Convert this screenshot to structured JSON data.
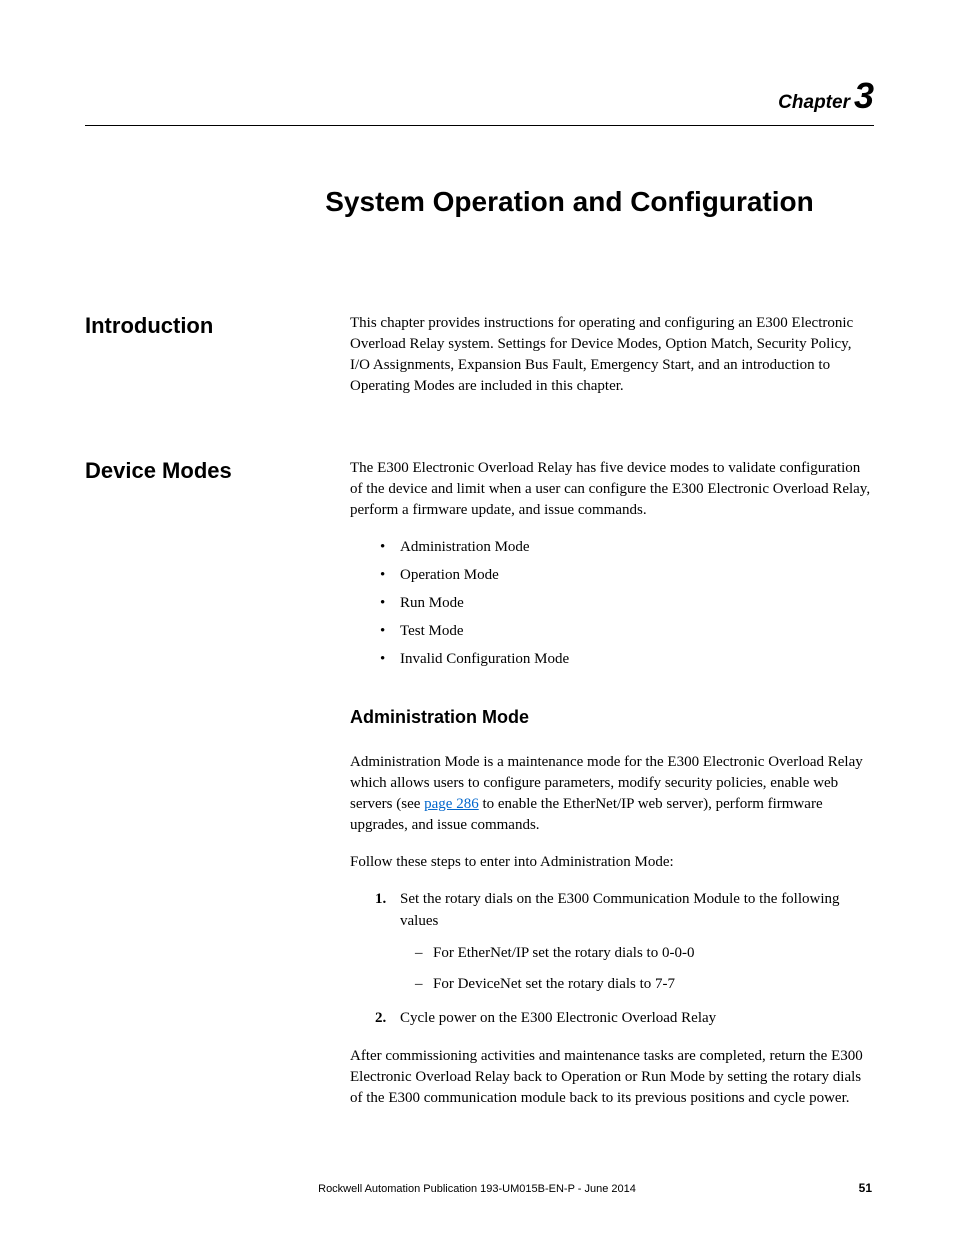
{
  "chapter": {
    "label": "Chapter",
    "number": "3"
  },
  "title": "System Operation and Configuration",
  "sections": {
    "introduction": {
      "heading": "Introduction",
      "body": "This chapter provides instructions for operating and configuring an E300 Electronic Overload Relay system. Settings for Device Modes, Option Match, Security Policy, I/O Assignments, Expansion Bus Fault, Emergency Start, and an introduction to Operating Modes are included in this chapter."
    },
    "device_modes": {
      "heading": "Device Modes",
      "intro": "The E300 Electronic Overload Relay has five device modes to validate configuration of the device and limit when a user can configure the E300 Electronic Overload Relay, perform a firmware update, and issue commands.",
      "modes": [
        "Administration Mode",
        "Operation Mode",
        "Run Mode",
        "Test Mode",
        "Invalid Configuration Mode"
      ],
      "admin_mode": {
        "heading": "Administration Mode",
        "para1_pre": "Administration Mode is a maintenance mode for the E300 Electronic Overload Relay which allows users to configure parameters, modify security policies, enable web servers (see ",
        "link_text": "page 286",
        "para1_post": " to enable the EtherNet/IP web server), perform firmware upgrades, and issue commands.",
        "para2": "Follow these steps to enter into Administration Mode:",
        "steps": [
          {
            "num": "1.",
            "text": "Set the rotary dials on the E300 Communication Module to the following values",
            "subs": [
              "For EtherNet/IP set the rotary dials to 0-0-0",
              "For DeviceNet set the rotary dials to 7-7"
            ]
          },
          {
            "num": "2.",
            "text": "Cycle power on the E300 Electronic Overload Relay",
            "subs": []
          }
        ],
        "para3": "After commissioning activities and maintenance tasks are completed, return the E300 Electronic Overload Relay back to Operation or Run Mode by setting the rotary dials of the E300 communication module back to its previous positions and cycle power."
      }
    }
  },
  "footer": {
    "publication": "Rockwell Automation Publication 193-UM015B-EN-P - June 2014",
    "page_number": "51"
  }
}
